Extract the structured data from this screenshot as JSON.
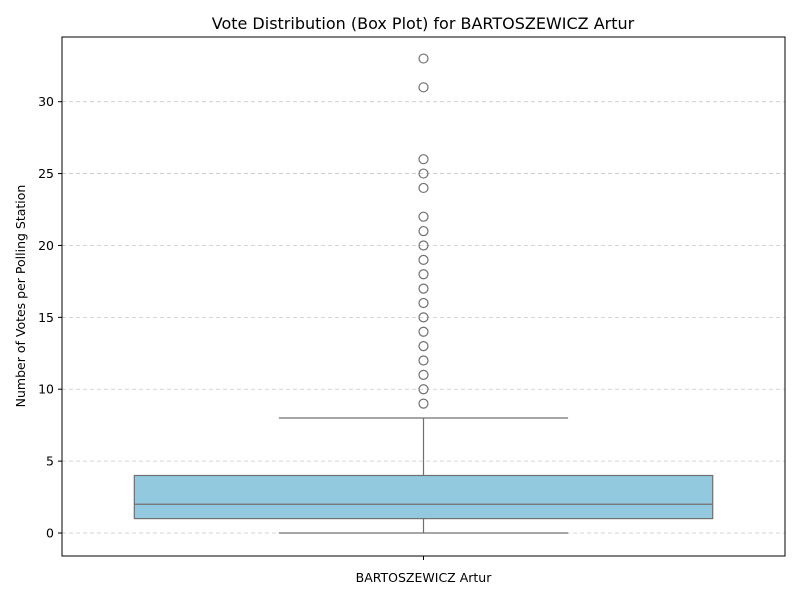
{
  "chart_data": {
    "type": "box",
    "title": "Vote Distribution (Box Plot) for BARTOSZEWICZ Artur",
    "xlabel": "",
    "ylabel": "Number of Votes per Polling Station",
    "categories": [
      "BARTOSZEWICZ Artur"
    ],
    "ylim": [
      -1.6,
      34.5
    ],
    "yticks": [
      0,
      5,
      10,
      15,
      20,
      25,
      30
    ],
    "grid": "y-dashed",
    "colors": {
      "box_fill": "#92c9df",
      "box_edge": "#707070",
      "grid": "#c8c8c8"
    },
    "boxes": [
      {
        "category": "BARTOSZEWICZ Artur",
        "whisker_low": 0,
        "q1": 1,
        "median": 2,
        "q3": 4,
        "whisker_high": 8,
        "outliers": [
          9,
          10,
          11,
          12,
          13,
          14,
          15,
          16,
          17,
          18,
          19,
          20,
          21,
          22,
          24,
          25,
          26,
          31,
          33
        ]
      }
    ]
  }
}
